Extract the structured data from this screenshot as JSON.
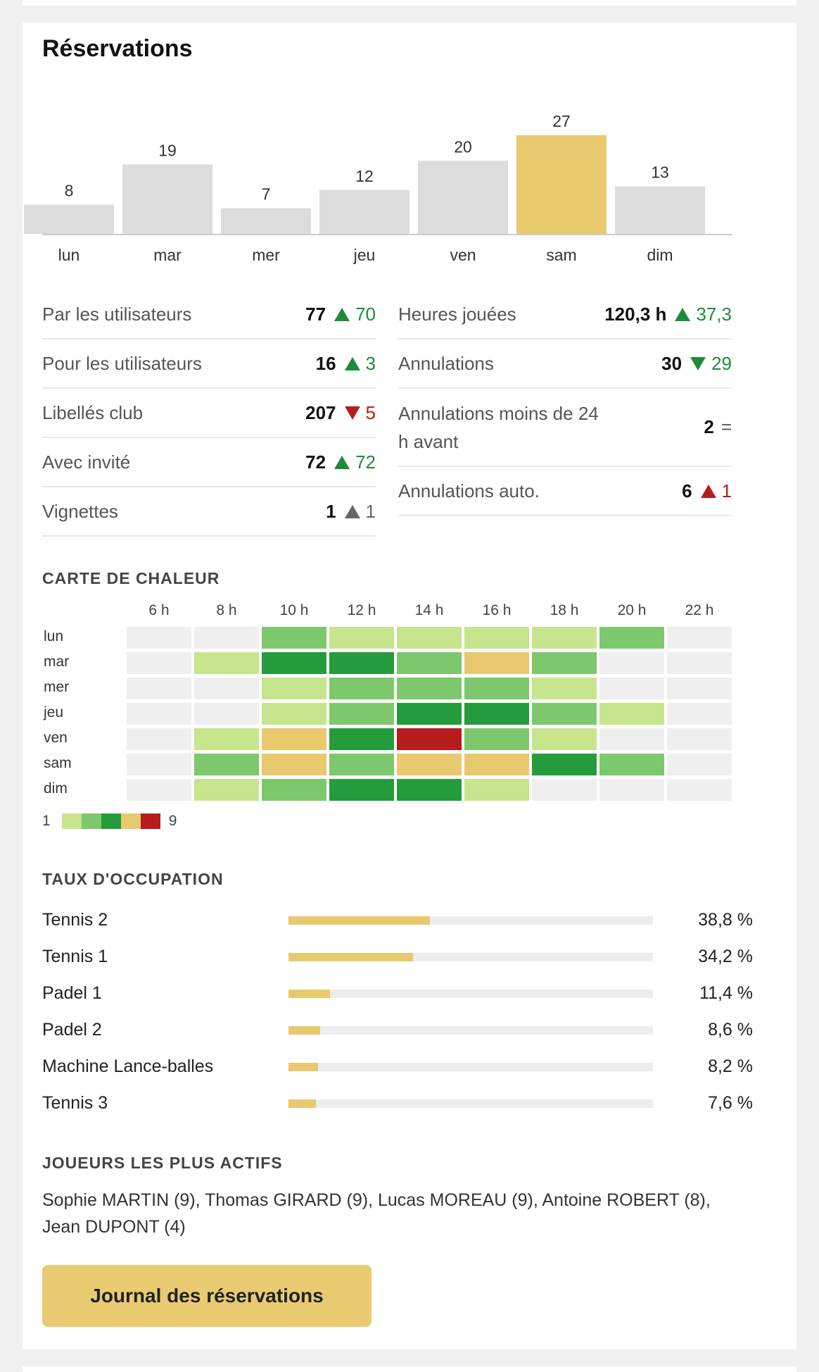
{
  "title": "Réservations",
  "chart_data": {
    "type": "bar",
    "categories": [
      "lun",
      "mar",
      "mer",
      "jeu",
      "ven",
      "sam",
      "dim"
    ],
    "values": [
      8,
      19,
      7,
      12,
      20,
      27,
      13
    ],
    "highlight_index": 5,
    "colors": {
      "bar": "#dcdcdc",
      "highlight": "#e8c96e",
      "axis": "#cccccc"
    }
  },
  "stats_left": [
    {
      "label": "Par les utilisateurs",
      "value": "77",
      "trend": "up",
      "color": "green",
      "delta": "70"
    },
    {
      "label": "Pour les utilisateurs",
      "value": "16",
      "trend": "up",
      "color": "green",
      "delta": "3"
    },
    {
      "label": "Libellés club",
      "value": "207",
      "trend": "down",
      "color": "red",
      "delta": "5"
    },
    {
      "label": "Avec invité",
      "value": "72",
      "trend": "up",
      "color": "green",
      "delta": "72"
    },
    {
      "label": "Vignettes",
      "value": "1",
      "trend": "up",
      "color": "grey",
      "delta": "1"
    }
  ],
  "stats_right": [
    {
      "label": "Heures jouées",
      "value": "120,3 h",
      "trend": "up",
      "color": "green",
      "delta": "37,3"
    },
    {
      "label": "Annulations",
      "value": "30",
      "trend": "down",
      "color": "green",
      "delta": "29"
    },
    {
      "label": "Annulations moins de 24 h avant",
      "value": "2",
      "trend": "equal",
      "color": "grey",
      "delta": "="
    },
    {
      "label": "Annulations auto.",
      "value": "6",
      "trend": "up",
      "color": "red",
      "delta": "1"
    }
  ],
  "heatmap": {
    "title": "CARTE DE CHALEUR",
    "hours": [
      "6 h",
      "8 h",
      "10 h",
      "12 h",
      "14 h",
      "16 h",
      "18 h",
      "20 h",
      "22 h"
    ],
    "days": [
      "lun",
      "mar",
      "mer",
      "jeu",
      "ven",
      "sam",
      "dim"
    ],
    "levels": [
      [
        0,
        0,
        2,
        1,
        1,
        1,
        1,
        2,
        0
      ],
      [
        0,
        1,
        3,
        3,
        2,
        4,
        2,
        0,
        0
      ],
      [
        0,
        0,
        1,
        2,
        2,
        2,
        1,
        0,
        0
      ],
      [
        0,
        0,
        1,
        2,
        3,
        3,
        2,
        1,
        0
      ],
      [
        0,
        1,
        4,
        3,
        5,
        2,
        1,
        0,
        0
      ],
      [
        0,
        2,
        4,
        2,
        4,
        4,
        3,
        2,
        0
      ],
      [
        0,
        1,
        2,
        3,
        3,
        1,
        0,
        0,
        0
      ]
    ],
    "palette": [
      "#efefef",
      "#c7e58c",
      "#7dc86c",
      "#259c3c",
      "#e8c96e",
      "#b71c1c"
    ],
    "legend_min": "1",
    "legend_max": "9"
  },
  "occupancy": {
    "title": "TAUX D'OCCUPATION",
    "items": [
      {
        "name": "Tennis 2",
        "pct": "38,8 %",
        "value": 38.8
      },
      {
        "name": "Tennis 1",
        "pct": "34,2 %",
        "value": 34.2
      },
      {
        "name": "Padel 1",
        "pct": "11,4 %",
        "value": 11.4
      },
      {
        "name": "Padel 2",
        "pct": "8,6 %",
        "value": 8.6
      },
      {
        "name": "Machine Lance-balles",
        "pct": "8,2 %",
        "value": 8.2
      },
      {
        "name": "Tennis 3",
        "pct": "7,6 %",
        "value": 7.6
      }
    ]
  },
  "players": {
    "title": "JOUEURS LES PLUS ACTIFS",
    "text": "Sophie MARTIN (9), Thomas GIRARD (9), Lucas MOREAU (9), Antoine ROBERT (8), Jean DUPONT (4)"
  },
  "button_label": "Journal des réservations"
}
